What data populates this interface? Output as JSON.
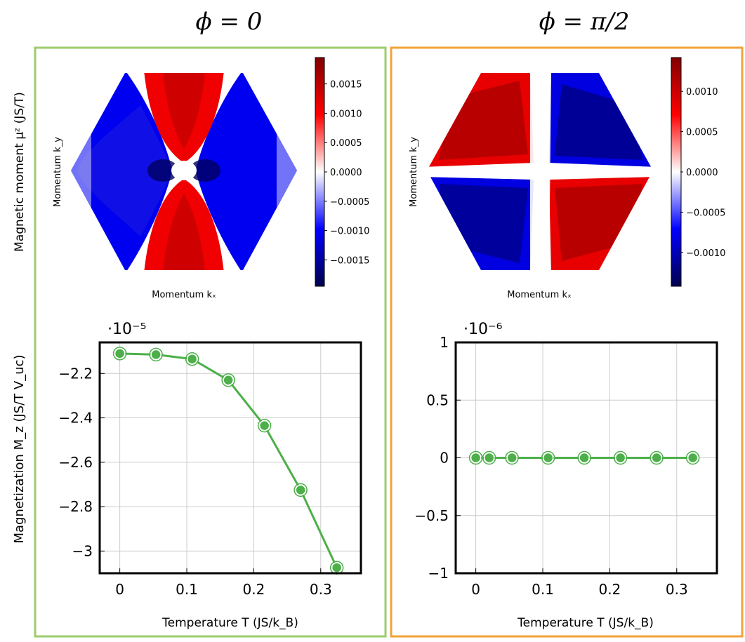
{
  "panel_titles": [
    "ϕ = 0",
    "ϕ = π/2"
  ],
  "frame_colors": {
    "left": "#9ccc6b",
    "right": "#f2a33a"
  },
  "shared_labels": {
    "top_ylabel": "Magnetic moment μᶻ (JS/T)",
    "bottom_ylabel": "Magnetization M_z (JS/T V_uc)"
  },
  "chart_data": [
    {
      "type": "heatmap",
      "panel": "ϕ = 0",
      "xlabel": "Momentum kₓ",
      "ylabel": "Momentum k_y",
      "colorbar": {
        "colormap": "seismic",
        "vmin": -0.00195,
        "vmax": 0.00195,
        "ticks": [
          -0.0015,
          -0.001,
          -0.0005,
          0.0,
          0.0005,
          0.001,
          0.0015
        ],
        "tick_labels": [
          "−0.0015",
          "−0.0010",
          "−0.0005",
          "0.0000",
          "0.0005",
          "0.0010",
          "0.0015"
        ]
      },
      "shape": "hexagon",
      "pattern": "negative along kₓ axis, positive lobes along k_y axis, node at center"
    },
    {
      "type": "heatmap",
      "panel": "ϕ = π/2",
      "xlabel": "Momentum kₓ",
      "ylabel": "Momentum k_y",
      "colorbar": {
        "colormap": "seismic",
        "vmin": -0.00142,
        "vmax": 0.00142,
        "ticks": [
          -0.001,
          -0.0005,
          0.0,
          0.0005,
          0.001
        ],
        "tick_labels": [
          "−0.0010",
          "−0.0005",
          "0.0000",
          "0.0005",
          "0.0010"
        ]
      },
      "shape": "hexagon",
      "pattern": "quadrupolar: positive upper-left and lower-right, negative upper-right and lower-left"
    },
    {
      "type": "line",
      "panel": "ϕ = 0",
      "xlabel": "Temperature T (JS/k_B)",
      "ylabel": "Magnetization M_z (JS/T V_uc)",
      "multiplier": "·10⁻⁵",
      "x": [
        0,
        0.054,
        0.108,
        0.162,
        0.216,
        0.27,
        0.324
      ],
      "y": [
        -2.11,
        -2.115,
        -2.135,
        -2.23,
        -2.435,
        -2.725,
        -3.075
      ],
      "xlim": [
        -0.03,
        0.36
      ],
      "ylim": [
        -3.1,
        -2.06
      ],
      "xticks": [
        0,
        0.1,
        0.2,
        0.3
      ],
      "xtick_labels": [
        "0",
        "0.1",
        "0.2",
        "0.3"
      ],
      "yticks": [
        -2.2,
        -2.4,
        -2.6,
        -2.8,
        -3.0
      ],
      "ytick_labels": [
        "−2.2",
        "−2.4",
        "−2.6",
        "−2.8",
        "−3"
      ],
      "grid": true,
      "color": "#4daf4a"
    },
    {
      "type": "line",
      "panel": "ϕ = π/2",
      "xlabel": "Temperature T (JS/k_B)",
      "ylabel": "",
      "multiplier": "·10⁻⁶",
      "x": [
        0,
        0.02,
        0.054,
        0.108,
        0.162,
        0.216,
        0.27,
        0.324
      ],
      "y": [
        0,
        0,
        0,
        0,
        0,
        0,
        0,
        0
      ],
      "xlim": [
        -0.03,
        0.36
      ],
      "ylim": [
        -1,
        1
      ],
      "xticks": [
        0,
        0.1,
        0.2,
        0.3
      ],
      "xtick_labels": [
        "0",
        "0.1",
        "0.2",
        "0.3"
      ],
      "yticks": [
        1,
        0.5,
        0,
        -0.5,
        -1
      ],
      "ytick_labels": [
        "1",
        "0.5",
        "0",
        "−0.5",
        "−1"
      ],
      "grid": true,
      "color": "#4daf4a"
    }
  ]
}
